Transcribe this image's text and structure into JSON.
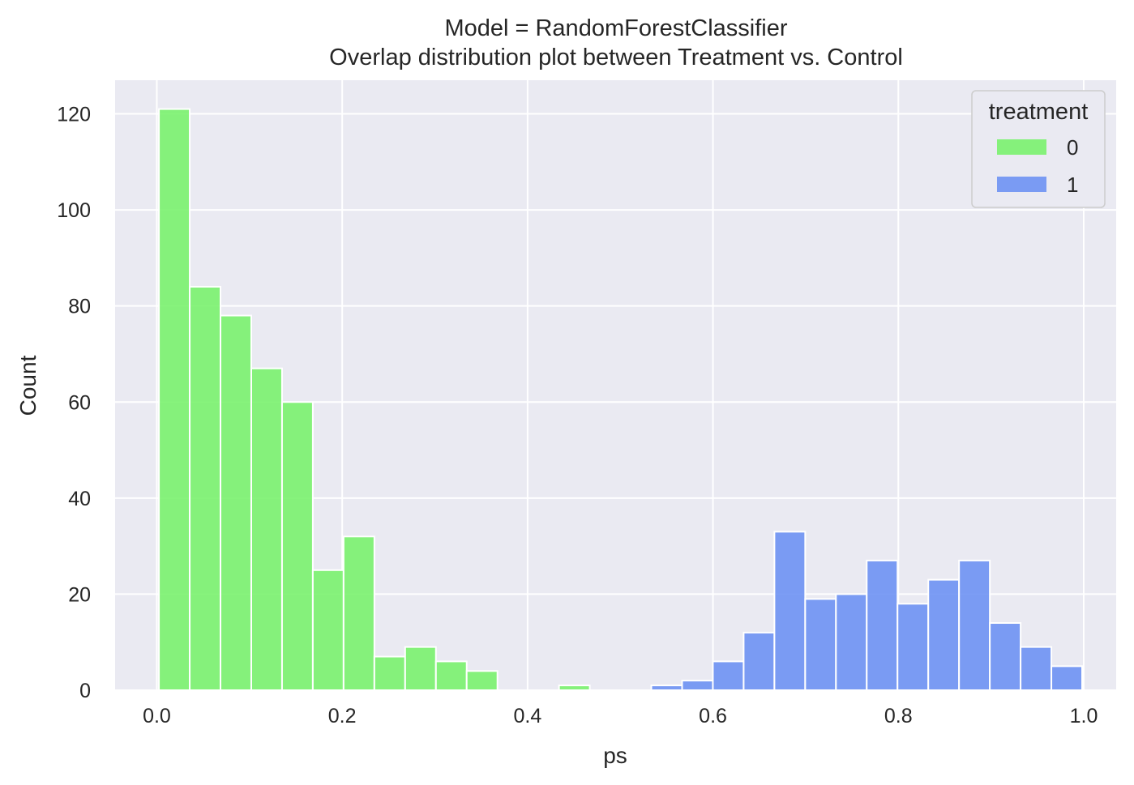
{
  "chart_data": {
    "type": "bar",
    "title": "Model = RandomForestClassifier",
    "subtitle": "Overlap distribution plot between Treatment vs. Control",
    "xlabel": "ps",
    "ylabel": "Count",
    "xlim": [
      -0.045,
      1.035
    ],
    "ylim": [
      0,
      127
    ],
    "xticks": [
      0.0,
      0.2,
      0.4,
      0.6,
      0.8,
      1.0
    ],
    "xtick_labels": [
      "0.0",
      "0.2",
      "0.4",
      "0.6",
      "0.8",
      "1.0"
    ],
    "yticks": [
      0,
      20,
      40,
      60,
      80,
      100,
      120
    ],
    "ytick_labels": [
      "0",
      "20",
      "40",
      "60",
      "80",
      "100",
      "120"
    ],
    "grid": true,
    "legend": {
      "title": "treatment",
      "placement": "top-right",
      "entries": [
        {
          "label": "0",
          "color": "#76f16a"
        },
        {
          "label": "1",
          "color": "#6a90f3"
        }
      ]
    },
    "bin_edges": [
      0.0023,
      0.0355,
      0.0687,
      0.1019,
      0.1351,
      0.1683,
      0.2015,
      0.2347,
      0.2679,
      0.3011,
      0.3343,
      0.3675,
      0.4007,
      0.4339,
      0.4671,
      0.5003,
      0.5335,
      0.5667,
      0.5999,
      0.6331,
      0.6663,
      0.6995,
      0.7327,
      0.7659,
      0.7991,
      0.8323,
      0.8655,
      0.8987,
      0.9319,
      0.9651,
      0.9983
    ],
    "series": [
      {
        "name": "0",
        "color": "#76f16a",
        "values": [
          121,
          84,
          78,
          67,
          60,
          25,
          32,
          7,
          9,
          6,
          4,
          0,
          0,
          1,
          0,
          0,
          0,
          0,
          0,
          0,
          0,
          0,
          0,
          0,
          0,
          0,
          0,
          0,
          0,
          0
        ]
      },
      {
        "name": "1",
        "color": "#6a90f3",
        "values": [
          0,
          0,
          0,
          0,
          0,
          0,
          0,
          0,
          0,
          0,
          0,
          0,
          0,
          0,
          0,
          0,
          1,
          2,
          6,
          12,
          33,
          19,
          20,
          27,
          18,
          23,
          27,
          14,
          9,
          5
        ]
      }
    ]
  },
  "style": {
    "plot_background": "#eaeaf2",
    "grid_color": "#ffffff",
    "bar_edge_color": "#ffffff",
    "text_color": "#262626"
  }
}
